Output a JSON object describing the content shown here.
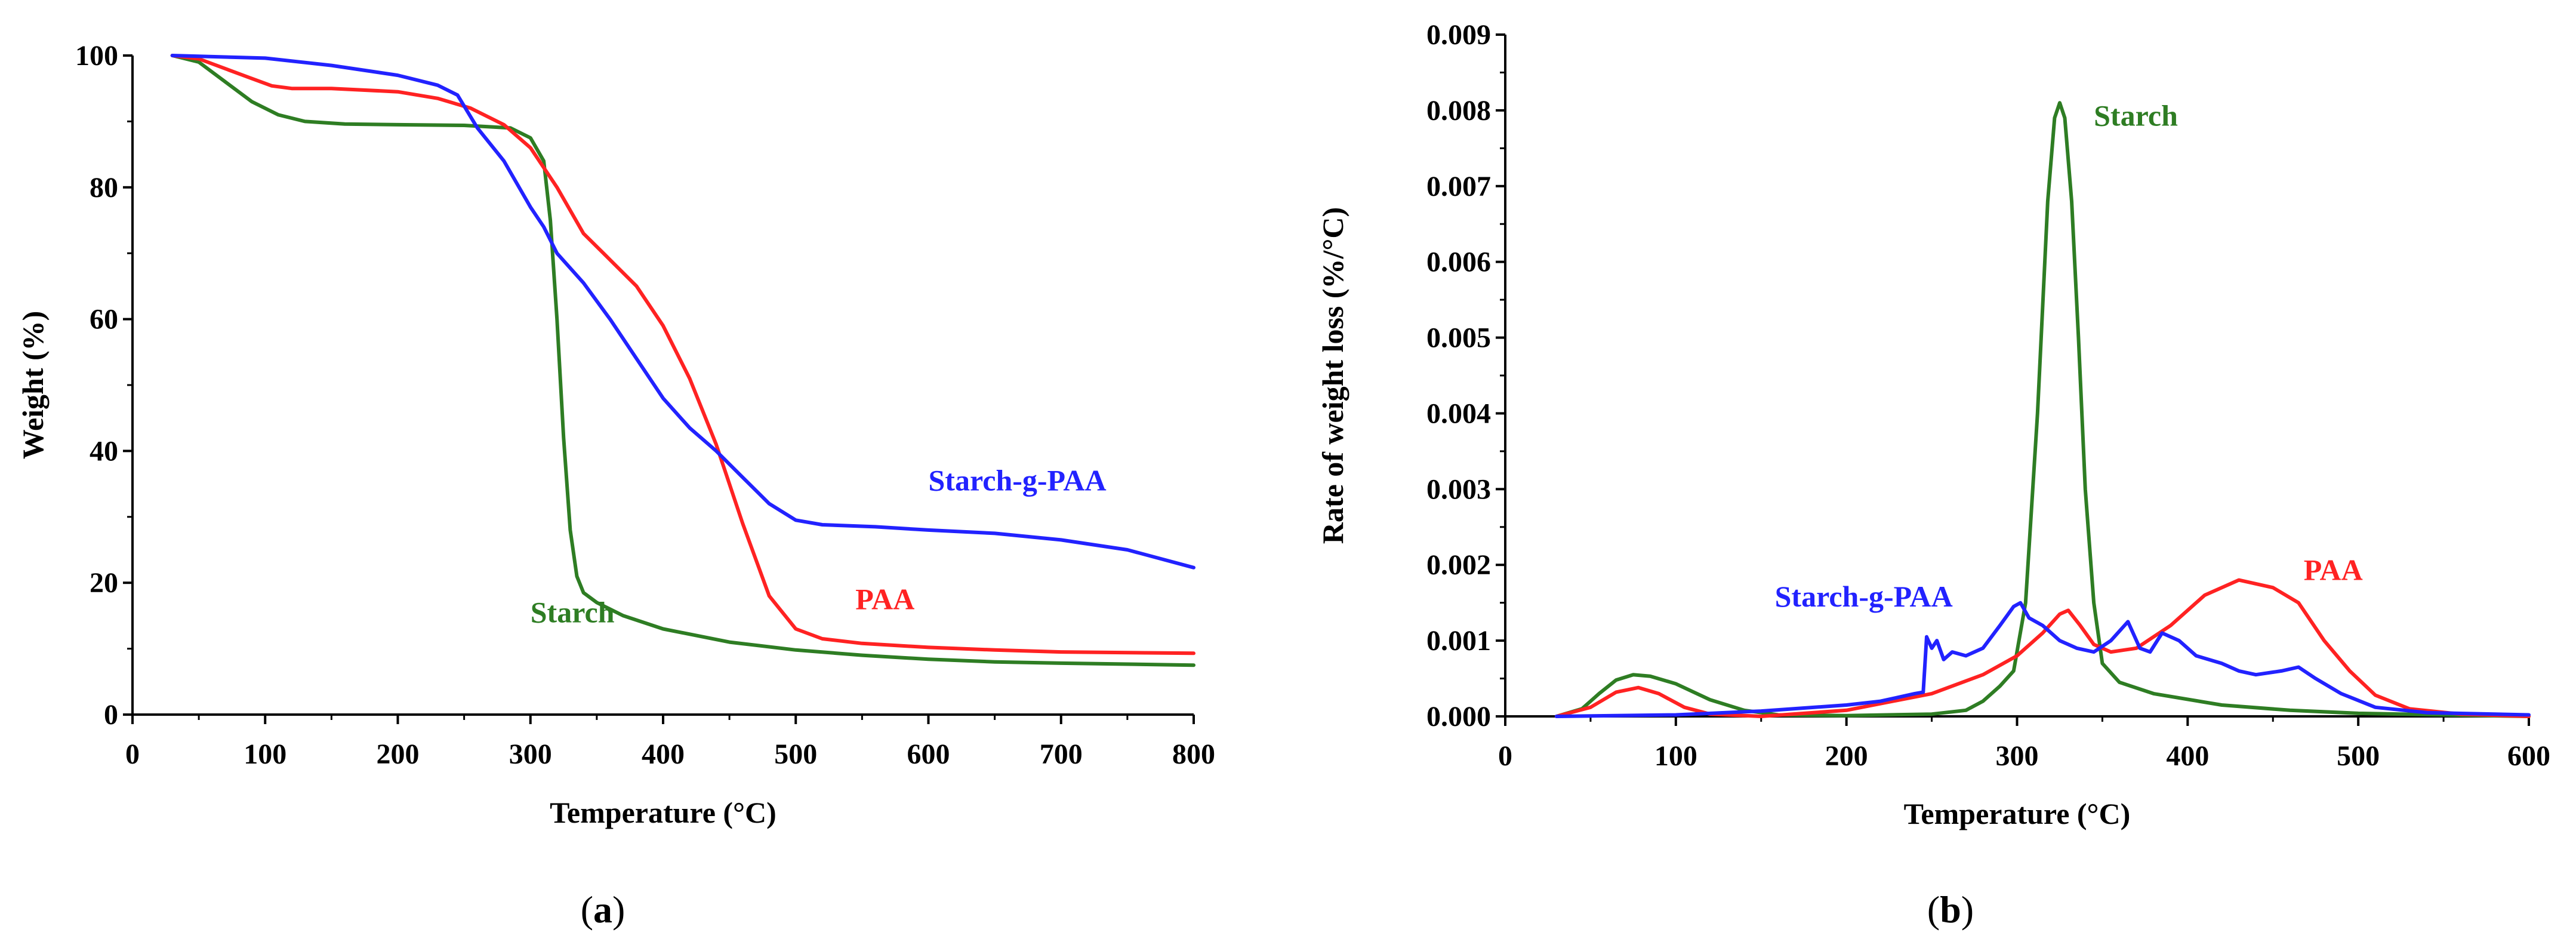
{
  "colors": {
    "starch": "#2e7d23",
    "paa": "#ff2222",
    "starch_g_paa": "#2222ff",
    "axis": "#000000"
  },
  "chart_data": [
    {
      "id": "a",
      "type": "line",
      "panel_label": "a",
      "xlabel": "Temperature (°C)",
      "ylabel": "Weight (%)",
      "xlim": [
        0,
        800
      ],
      "ylim": [
        0,
        100
      ],
      "x_ticks": [
        0,
        100,
        200,
        300,
        400,
        500,
        600,
        700,
        800
      ],
      "y_ticks": [
        0,
        20,
        40,
        60,
        80,
        100
      ],
      "x_tick_labels": [
        "0",
        "100",
        "200",
        "300",
        "400",
        "500",
        "600",
        "700",
        "800"
      ],
      "y_tick_labels": [
        "0",
        "20",
        "40",
        "60",
        "80",
        "100"
      ],
      "grid": false,
      "series": [
        {
          "key": "starch",
          "name": "Starch",
          "color_key": "starch",
          "label_at": [
            300,
            14
          ],
          "points": [
            [
              30,
              100
            ],
            [
              50,
              99
            ],
            [
              70,
              96
            ],
            [
              90,
              93
            ],
            [
              110,
              91
            ],
            [
              130,
              90
            ],
            [
              160,
              89.6
            ],
            [
              200,
              89.5
            ],
            [
              250,
              89.4
            ],
            [
              285,
              89
            ],
            [
              300,
              87.5
            ],
            [
              310,
              84
            ],
            [
              315,
              75
            ],
            [
              320,
              60
            ],
            [
              325,
              42
            ],
            [
              330,
              28
            ],
            [
              335,
              21
            ],
            [
              340,
              18.5
            ],
            [
              350,
              17
            ],
            [
              370,
              15
            ],
            [
              400,
              13
            ],
            [
              450,
              11
            ],
            [
              500,
              9.8
            ],
            [
              550,
              9
            ],
            [
              600,
              8.4
            ],
            [
              650,
              8
            ],
            [
              700,
              7.8
            ],
            [
              800,
              7.5
            ]
          ]
        },
        {
          "key": "paa",
          "name": "PAA",
          "color_key": "paa",
          "label_at": [
            545,
            16
          ],
          "points": [
            [
              30,
              100
            ],
            [
              50,
              99.5
            ],
            [
              70,
              98
            ],
            [
              90,
              96.5
            ],
            [
              105,
              95.4
            ],
            [
              120,
              95
            ],
            [
              150,
              95
            ],
            [
              200,
              94.5
            ],
            [
              230,
              93.5
            ],
            [
              255,
              92
            ],
            [
              280,
              89.5
            ],
            [
              300,
              86
            ],
            [
              320,
              80
            ],
            [
              340,
              73
            ],
            [
              360,
              69
            ],
            [
              380,
              65
            ],
            [
              400,
              59
            ],
            [
              420,
              51
            ],
            [
              440,
              41
            ],
            [
              460,
              29
            ],
            [
              480,
              18
            ],
            [
              500,
              13
            ],
            [
              520,
              11.5
            ],
            [
              550,
              10.8
            ],
            [
              600,
              10.2
            ],
            [
              650,
              9.8
            ],
            [
              700,
              9.5
            ],
            [
              800,
              9.3
            ]
          ]
        },
        {
          "key": "starch_g_paa",
          "name": "Starch-g-PAA",
          "color_key": "starch_g_paa",
          "label_at": [
            600,
            34
          ],
          "points": [
            [
              30,
              100
            ],
            [
              100,
              99.6
            ],
            [
              150,
              98.5
            ],
            [
              200,
              97
            ],
            [
              230,
              95.5
            ],
            [
              245,
              94
            ],
            [
              260,
              89
            ],
            [
              280,
              84
            ],
            [
              300,
              77
            ],
            [
              310,
              74
            ],
            [
              320,
              70
            ],
            [
              340,
              65.5
            ],
            [
              360,
              60
            ],
            [
              380,
              54
            ],
            [
              400,
              48
            ],
            [
              420,
              43.5
            ],
            [
              440,
              40
            ],
            [
              460,
              36
            ],
            [
              480,
              32
            ],
            [
              500,
              29.5
            ],
            [
              520,
              28.8
            ],
            [
              560,
              28.5
            ],
            [
              600,
              28
            ],
            [
              650,
              27.5
            ],
            [
              700,
              26.5
            ],
            [
              750,
              25
            ],
            [
              800,
              22.3
            ]
          ]
        }
      ]
    },
    {
      "id": "b",
      "type": "line",
      "panel_label": "b",
      "xlabel": "Temperature (°C)",
      "ylabel": "Rate of weight loss (%/°C)",
      "xlim": [
        0,
        600
      ],
      "ylim": [
        0,
        0.009
      ],
      "x_ticks": [
        0,
        100,
        200,
        300,
        400,
        500,
        600
      ],
      "y_ticks": [
        0,
        0.001,
        0.002,
        0.003,
        0.004,
        0.005,
        0.006,
        0.007,
        0.008,
        0.009
      ],
      "x_tick_labels": [
        "0",
        "100",
        "200",
        "300",
        "400",
        "500",
        "600"
      ],
      "y_tick_labels": [
        "0.000",
        "0.001",
        "0.002",
        "0.003",
        "0.004",
        "0.005",
        "0.006",
        "0.007",
        "0.008",
        "0.009"
      ],
      "grid": false,
      "series": [
        {
          "key": "starch",
          "name": "Starch",
          "color_key": "starch",
          "label_at": [
            345,
            0.0078
          ],
          "points": [
            [
              30,
              0
            ],
            [
              45,
              0.0001
            ],
            [
              55,
              0.0003
            ],
            [
              65,
              0.00048
            ],
            [
              75,
              0.00055
            ],
            [
              85,
              0.00053
            ],
            [
              100,
              0.00043
            ],
            [
              120,
              0.00022
            ],
            [
              140,
              8e-05
            ],
            [
              160,
              2e-05
            ],
            [
              200,
              1e-05
            ],
            [
              250,
              3e-05
            ],
            [
              270,
              8e-05
            ],
            [
              280,
              0.0002
            ],
            [
              290,
              0.0004
            ],
            [
              298,
              0.0006
            ],
            [
              305,
              0.0015
            ],
            [
              312,
              0.004
            ],
            [
              318,
              0.0068
            ],
            [
              322,
              0.0079
            ],
            [
              325,
              0.0081
            ],
            [
              328,
              0.0079
            ],
            [
              332,
              0.0068
            ],
            [
              336,
              0.005
            ],
            [
              340,
              0.003
            ],
            [
              345,
              0.0015
            ],
            [
              350,
              0.0007
            ],
            [
              360,
              0.00045
            ],
            [
              380,
              0.0003
            ],
            [
              420,
              0.00015
            ],
            [
              460,
              8e-05
            ],
            [
              500,
              4e-05
            ],
            [
              550,
              2e-05
            ],
            [
              600,
              0
            ]
          ]
        },
        {
          "key": "paa",
          "name": "PAA",
          "color_key": "paa",
          "label_at": [
            468,
            0.0018
          ],
          "points": [
            [
              30,
              0
            ],
            [
              50,
              0.00012
            ],
            [
              65,
              0.00032
            ],
            [
              78,
              0.00038
            ],
            [
              90,
              0.0003
            ],
            [
              105,
              0.00012
            ],
            [
              120,
              3e-05
            ],
            [
              150,
              0
            ],
            [
              200,
              8e-05
            ],
            [
              250,
              0.0003
            ],
            [
              280,
              0.00055
            ],
            [
              300,
              0.0008
            ],
            [
              315,
              0.0011
            ],
            [
              325,
              0.00135
            ],
            [
              330,
              0.0014
            ],
            [
              337,
              0.0012
            ],
            [
              345,
              0.00095
            ],
            [
              355,
              0.00085
            ],
            [
              370,
              0.0009
            ],
            [
              390,
              0.0012
            ],
            [
              410,
              0.0016
            ],
            [
              430,
              0.0018
            ],
            [
              450,
              0.0017
            ],
            [
              465,
              0.0015
            ],
            [
              480,
              0.001
            ],
            [
              495,
              0.0006
            ],
            [
              510,
              0.00028
            ],
            [
              530,
              0.0001
            ],
            [
              560,
              3e-05
            ],
            [
              600,
              0
            ]
          ]
        },
        {
          "key": "starch_g_paa",
          "name": "Starch-g-PAA",
          "color_key": "starch_g_paa",
          "label_at": [
            158,
            0.00145
          ],
          "points": [
            [
              30,
              0
            ],
            [
              100,
              2e-05
            ],
            [
              150,
              7e-05
            ],
            [
              200,
              0.00015
            ],
            [
              220,
              0.0002
            ],
            [
              230,
              0.00025
            ],
            [
              240,
              0.0003
            ],
            [
              245,
              0.00032
            ],
            [
              247,
              0.00105
            ],
            [
              250,
              0.0009
            ],
            [
              253,
              0.001
            ],
            [
              257,
              0.00075
            ],
            [
              262,
              0.00085
            ],
            [
              270,
              0.0008
            ],
            [
              280,
              0.0009
            ],
            [
              290,
              0.0012
            ],
            [
              298,
              0.00145
            ],
            [
              302,
              0.0015
            ],
            [
              307,
              0.0013
            ],
            [
              315,
              0.0012
            ],
            [
              325,
              0.001
            ],
            [
              335,
              0.0009
            ],
            [
              345,
              0.00085
            ],
            [
              355,
              0.001
            ],
            [
              365,
              0.00125
            ],
            [
              372,
              0.0009
            ],
            [
              378,
              0.00085
            ],
            [
              385,
              0.0011
            ],
            [
              395,
              0.001
            ],
            [
              405,
              0.0008
            ],
            [
              420,
              0.0007
            ],
            [
              430,
              0.0006
            ],
            [
              440,
              0.00055
            ],
            [
              455,
              0.0006
            ],
            [
              465,
              0.00065
            ],
            [
              475,
              0.0005
            ],
            [
              490,
              0.0003
            ],
            [
              510,
              0.00012
            ],
            [
              540,
              5e-05
            ],
            [
              600,
              2e-05
            ]
          ]
        }
      ]
    }
  ]
}
